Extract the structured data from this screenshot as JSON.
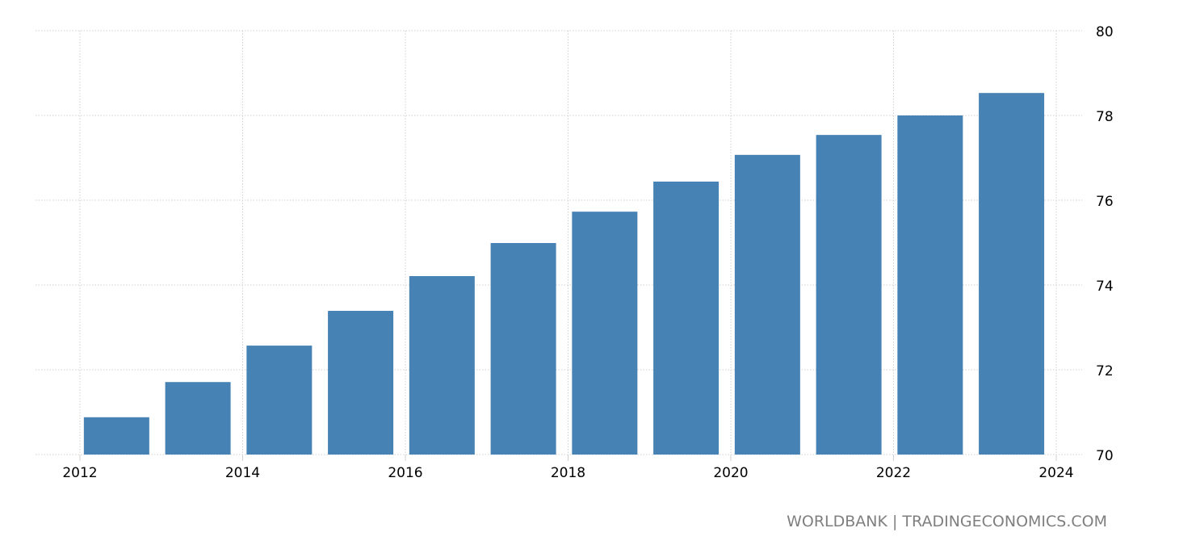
{
  "chart_data": {
    "type": "bar",
    "title": "",
    "xlabel": "",
    "ylabel": "",
    "categories": [
      "2012",
      "2013",
      "2014",
      "2015",
      "2016",
      "2017",
      "2018",
      "2019",
      "2020",
      "2021",
      "2022",
      "2023"
    ],
    "values": [
      70.88,
      71.71,
      72.57,
      73.39,
      74.21,
      74.99,
      75.73,
      76.44,
      77.07,
      77.54,
      78.0,
      78.53
    ],
    "ylim": [
      70,
      80
    ],
    "xlim": [
      2011.45,
      2024.3
    ],
    "y_ticks": [
      "70",
      "72",
      "74",
      "76",
      "78",
      "80"
    ],
    "x_ticks": [
      "2012",
      "2014",
      "2016",
      "2018",
      "2020",
      "2022",
      "2024"
    ],
    "y_axis_side": "right",
    "grid": true,
    "bar_color": "#4682b4"
  },
  "source": "WORLDBANK | TRADINGECONOMICS.COM"
}
